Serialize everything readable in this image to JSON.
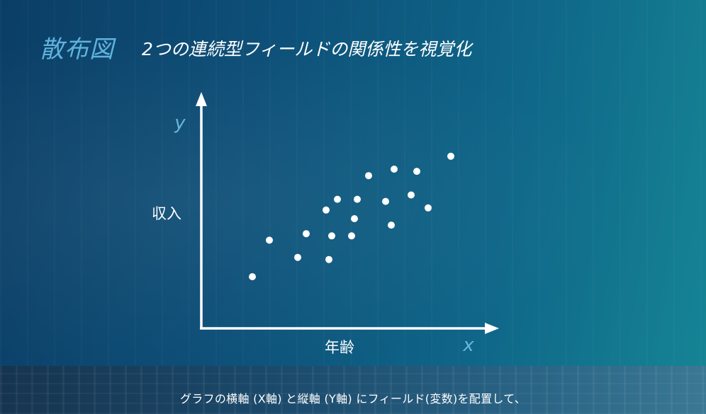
{
  "slide": {
    "title_main": "散布図",
    "title_sub": "2つの連続型フィールドの関係性を視覚化",
    "subtitle": "グラフの横軸 (X軸) と縦軸 (Y軸) にフィールド(変数)を配置して、"
  },
  "chart_data": {
    "type": "scatter",
    "x_axis_symbol": "x",
    "y_axis_symbol": "y",
    "xlabel": "年齢",
    "ylabel": "収入",
    "axis_ticks": "none",
    "grid": false,
    "xlim": [
      0,
      100
    ],
    "ylim": [
      0,
      100
    ],
    "points": [
      {
        "x": 18,
        "y": 24
      },
      {
        "x": 24,
        "y": 41
      },
      {
        "x": 34,
        "y": 33
      },
      {
        "x": 37,
        "y": 44
      },
      {
        "x": 45,
        "y": 32
      },
      {
        "x": 46,
        "y": 43
      },
      {
        "x": 44,
        "y": 55
      },
      {
        "x": 48,
        "y": 60
      },
      {
        "x": 53,
        "y": 43
      },
      {
        "x": 54,
        "y": 51
      },
      {
        "x": 55,
        "y": 60
      },
      {
        "x": 59,
        "y": 71
      },
      {
        "x": 65,
        "y": 59
      },
      {
        "x": 67,
        "y": 48
      },
      {
        "x": 68,
        "y": 74
      },
      {
        "x": 74,
        "y": 62
      },
      {
        "x": 76,
        "y": 73
      },
      {
        "x": 80,
        "y": 56
      },
      {
        "x": 88,
        "y": 80
      }
    ],
    "colors": {
      "points": "#ffffff",
      "axes": "#ffffff",
      "axis_symbol": "#69b6dc",
      "title_accent": "#5fb3dd"
    }
  }
}
